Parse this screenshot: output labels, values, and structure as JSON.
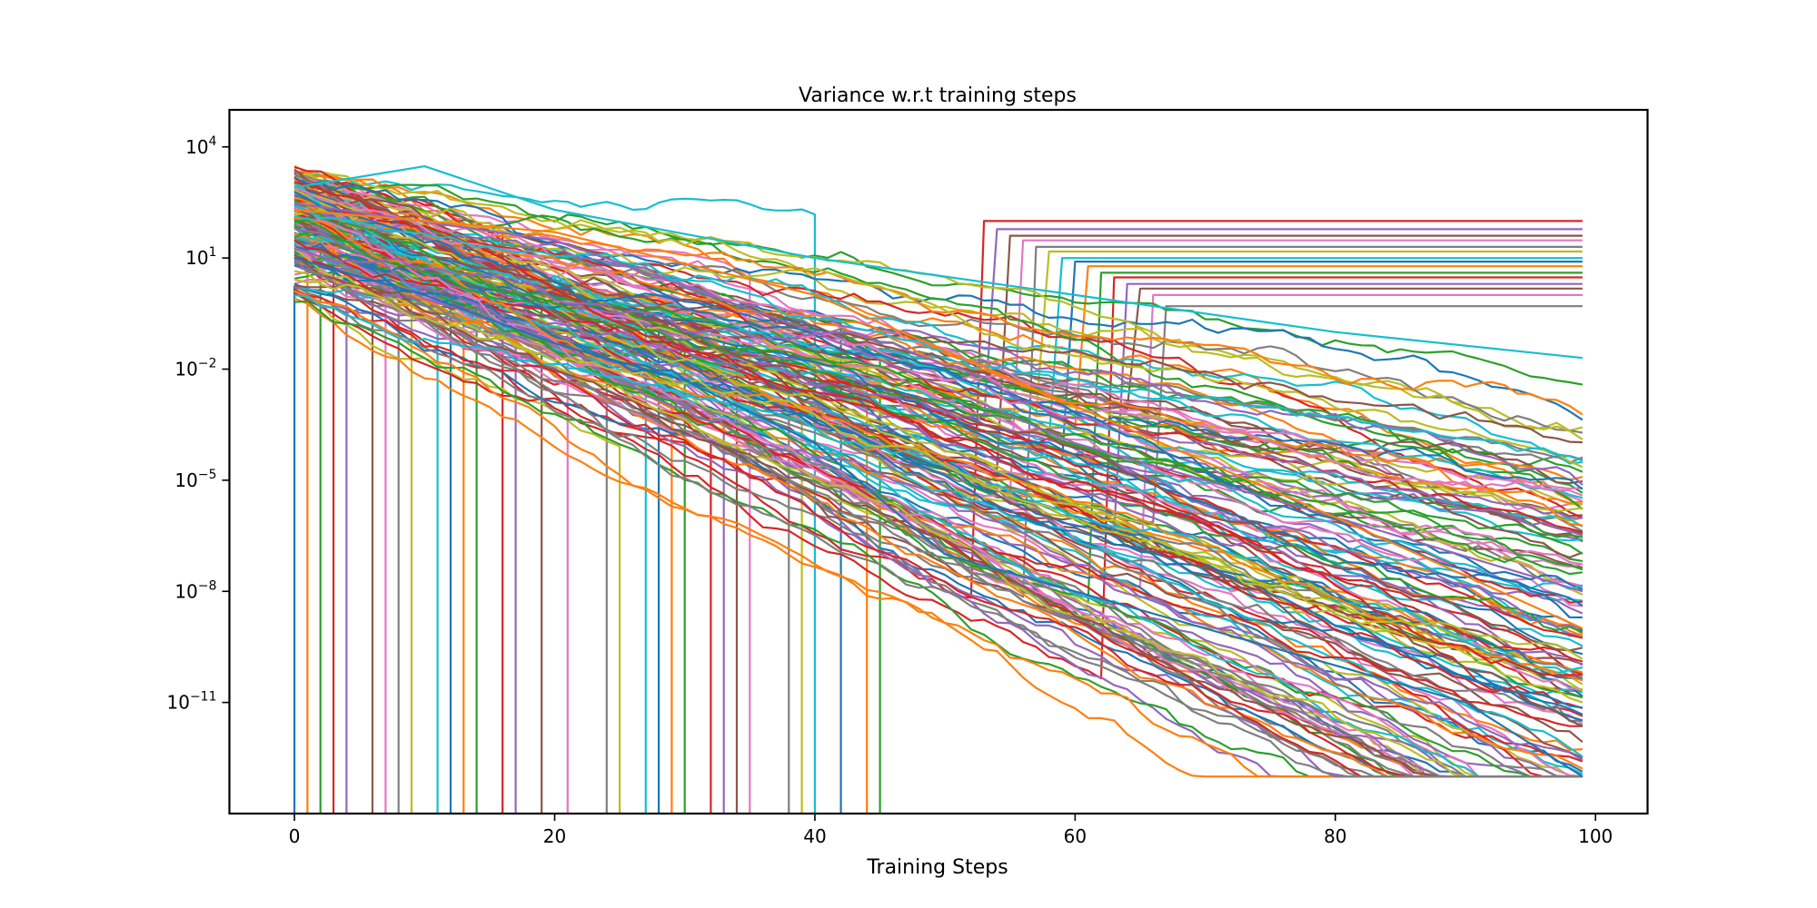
{
  "chart_data": {
    "type": "line",
    "title": "Variance w.r.t training steps",
    "xlabel": "Training Steps",
    "ylabel": "",
    "xlim": [
      -5,
      104
    ],
    "ylim": [
      1e-14,
      100000.0
    ],
    "yscale": "log",
    "grid": false,
    "legend": "none",
    "x_ticks": [
      {
        "value": 0,
        "label": "0"
      },
      {
        "value": 20,
        "label": "20"
      },
      {
        "value": 40,
        "label": "40"
      },
      {
        "value": 60,
        "label": "60"
      },
      {
        "value": 80,
        "label": "80"
      },
      {
        "value": 100,
        "label": "100"
      }
    ],
    "y_ticks": [
      {
        "value": 10000.0,
        "base": "10",
        "exp": "4"
      },
      {
        "value": 10.0,
        "base": "10",
        "exp": "1"
      },
      {
        "value": 0.01,
        "base": "10",
        "exp": "−2"
      },
      {
        "value": 1e-05,
        "base": "10",
        "exp": "−5"
      },
      {
        "value": 1e-08,
        "base": "10",
        "exp": "−8"
      },
      {
        "value": 1e-11,
        "base": "10",
        "exp": "−11"
      }
    ],
    "x_range": [
      0,
      99
    ],
    "series_count": 200,
    "palette": [
      "#1f77b4",
      "#ff7f0e",
      "#2ca02c",
      "#d62728",
      "#9467bd",
      "#8c564b",
      "#e377c2",
      "#7f7f7f",
      "#bcbd22",
      "#17becf"
    ],
    "series_representative": [
      {
        "color": "#17becf",
        "x": [
          0,
          10,
          20,
          40,
          60,
          80,
          99
        ],
        "y": [
          800,
          3000,
          200,
          10,
          1,
          0.1,
          0.02
        ]
      },
      {
        "color": "#1f77b4",
        "x": [
          0,
          10,
          20,
          30,
          40,
          50,
          60,
          70,
          80,
          90,
          99
        ],
        "y": [
          10,
          1,
          0.05,
          0.005,
          0.0001,
          1e-07,
          1e-08,
          1e-09,
          1e-10,
          1e-11,
          1e-13
        ]
      },
      {
        "color": "#9467bd",
        "x": [
          0,
          20,
          40,
          60,
          80,
          99
        ],
        "y": [
          300,
          30,
          0.1,
          0.0001,
          1e-06,
          1e-08
        ]
      },
      {
        "color": "#ff7f0e",
        "x": [
          0,
          20,
          40,
          60,
          80,
          99
        ],
        "y": [
          200,
          50,
          1,
          0.001,
          1e-06,
          1e-09
        ]
      }
    ],
    "flat_after_drop_levels": [
      100,
      60,
      40,
      30,
      20,
      15,
      10,
      8,
      6,
      4,
      3,
      2,
      1.5,
      1,
      0.5
    ],
    "zero_drop_steps": [
      0,
      1,
      2,
      3,
      4,
      6,
      7,
      8,
      9,
      11,
      12,
      13,
      14,
      16,
      17,
      19,
      21,
      24,
      25,
      27,
      28,
      29,
      30,
      32,
      33,
      34,
      35,
      38,
      39,
      40,
      42,
      44,
      45
    ]
  }
}
